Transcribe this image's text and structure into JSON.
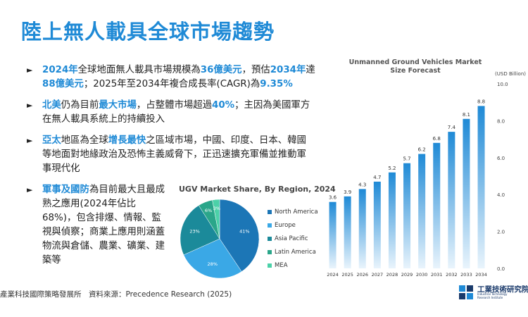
{
  "slide": {
    "title": "陸上無人載具全球市場趨勢",
    "footer": "產業科技國際策略發展所　資料來源：Precedence Research (2025)",
    "logo_cn": "工業技術研究院",
    "logo_en": "Industrial Technology Research Institute",
    "accent_color": "#1f8ad6"
  },
  "bullets": [
    {
      "segments": [
        {
          "text": "2024年",
          "hl": true
        },
        {
          "text": "全球地面無人載具市場規模為"
        },
        {
          "text": "36億美元",
          "hl": true
        },
        {
          "text": "，預估"
        },
        {
          "text": "2034年",
          "hl": true
        },
        {
          "text": "達"
        },
        {
          "text": "88億美元",
          "hl": true
        },
        {
          "text": "；2025年至2034年複合成長率(CAGR)為"
        },
        {
          "text": "9.35%",
          "hl": true
        }
      ]
    },
    {
      "segments": [
        {
          "text": "北美",
          "hl": true
        },
        {
          "text": "仍為目前"
        },
        {
          "text": "最大市場",
          "hl": true
        },
        {
          "text": "，占整體市場超過"
        },
        {
          "text": "40%",
          "hl": true
        },
        {
          "text": "；主因為美國軍方在無人載具系統上的持續投入"
        }
      ]
    },
    {
      "segments": [
        {
          "text": "亞太",
          "hl": true
        },
        {
          "text": "地區為全球"
        },
        {
          "text": "增長最快",
          "hl": true
        },
        {
          "text": "之區域市場，中國、印度、日本、韓國等地面對地緣政治及恐怖主義威脅下，正迅速擴充軍備並推動軍事現代化"
        }
      ]
    },
    {
      "narrow": true,
      "segments": [
        {
          "text": "軍事及國防",
          "hl": true
        },
        {
          "text": "為目前最大且最成熟之應用(2024年佔比68%)，包含排爆、情報、監視與偵察；商業上應用則涵蓋物流與倉儲、農業、礦業、建築等"
        }
      ]
    }
  ],
  "chart_data": [
    {
      "type": "bar",
      "title": "Unmanned Ground Vehicles Market Size Forecast",
      "unit_label": "(USD Billion)",
      "categories": [
        "2024",
        "2025",
        "2026",
        "2027",
        "2028",
        "2029",
        "2030",
        "2031",
        "2032",
        "2033",
        "2034"
      ],
      "values": [
        3.6,
        3.9,
        4.3,
        4.7,
        5.2,
        5.7,
        6.2,
        6.8,
        7.4,
        8.1,
        8.8
      ],
      "value_labels": [
        "3.6",
        "3.9",
        "4.3",
        "4.7",
        "5.2",
        "5.7",
        "6.2",
        "6.8",
        "7.4",
        "8.1",
        "8.8"
      ],
      "yticks": [
        "0.0",
        "2.0",
        "4.0",
        "6.0",
        "8.0",
        "10.0"
      ],
      "ylim": [
        0,
        10
      ],
      "ytick_position": "right",
      "grid": false,
      "bar_color": "#1f8ad6"
    },
    {
      "type": "pie",
      "title": "UGV Market Share, By Region, 2024",
      "slices": [
        {
          "name": "North America",
          "value": 41,
          "label": "41%",
          "color": "#1c76b6"
        },
        {
          "name": "Europe",
          "value": 28,
          "label": "28%",
          "color": "#3aa8e6"
        },
        {
          "name": "Asia Pacific",
          "value": 23,
          "label": "23%",
          "color": "#1b8a9a"
        },
        {
          "name": "Latin America",
          "value": 6,
          "label": "6%",
          "color": "#2aa68a"
        },
        {
          "name": "MEA",
          "value": 3,
          "label": "3%",
          "color": "#4bd1a8"
        }
      ],
      "legend_position": "right"
    }
  ]
}
